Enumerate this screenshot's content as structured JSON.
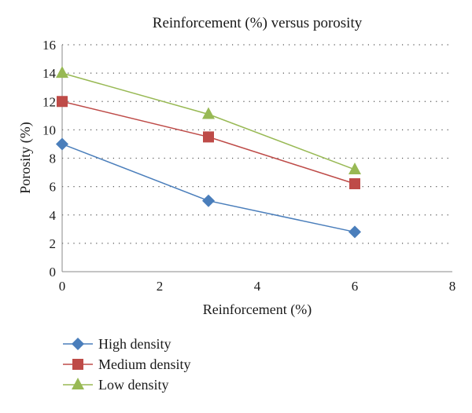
{
  "chart_data": {
    "type": "line",
    "title": "Reinforcement (%) versus porosity",
    "xlabel": "Reinforcement (%)",
    "ylabel": "Porosity (%)",
    "xlim": [
      0,
      8
    ],
    "ylim": [
      0,
      16
    ],
    "xticks": [
      "0",
      "2",
      "4",
      "6",
      "8"
    ],
    "yticks": [
      "0",
      "2",
      "4",
      "6",
      "8",
      "10",
      "12",
      "14",
      "16"
    ],
    "grid": "horizontal dotted",
    "legend_position": "bottom-left",
    "series": [
      {
        "name": "High density",
        "x": [
          0,
          3,
          6
        ],
        "values": [
          9,
          5,
          2.8
        ],
        "color": "#4a7ebb",
        "marker": "diamond"
      },
      {
        "name": "Medium density",
        "x": [
          0,
          3,
          6
        ],
        "values": [
          12,
          9.5,
          6.2
        ],
        "color": "#be4b48",
        "marker": "square"
      },
      {
        "name": "Low density",
        "x": [
          0,
          3,
          6
        ],
        "values": [
          14,
          11.1,
          7.2
        ],
        "color": "#98b954",
        "marker": "triangle"
      }
    ]
  }
}
